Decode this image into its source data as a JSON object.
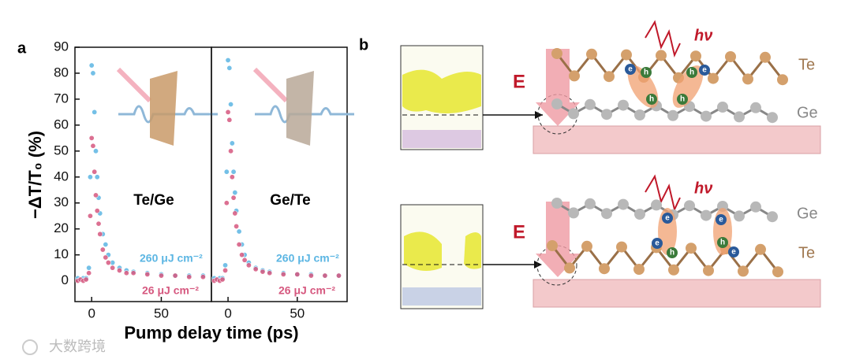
{
  "chart_data": [
    {
      "type": "scatter",
      "panel_label": "a",
      "title": "Te/Ge",
      "ylabel": "−ΔT/T₀ (%)",
      "xlabel": "Pump delay time (ps)",
      "x": [
        -10,
        -8,
        -6,
        -4,
        -2,
        -1,
        0,
        1,
        2,
        3,
        4,
        5,
        6,
        8,
        10,
        12,
        15,
        20,
        25,
        30,
        40,
        50,
        60,
        70,
        80
      ],
      "series": [
        {
          "name": "260 μJ cm⁻²",
          "color": "#5cb6e3",
          "values": [
            1,
            0.5,
            1,
            1,
            5,
            40,
            83,
            80,
            65,
            50,
            40,
            32,
            26,
            18,
            14,
            10,
            7,
            5,
            4,
            3.5,
            3,
            2.5,
            2,
            2,
            2
          ]
        },
        {
          "name": "26 μJ cm⁻²",
          "color": "#d6587f",
          "values": [
            0,
            0.5,
            0,
            0.5,
            3,
            25,
            55,
            52,
            42,
            33,
            27,
            22,
            18,
            12,
            9,
            7,
            5,
            4,
            3,
            3,
            2.5,
            2,
            2,
            1.5,
            1.5
          ]
        }
      ],
      "xlim": [
        -12,
        86
      ],
      "ylim": [
        -8,
        90
      ],
      "xticks": [
        0,
        50
      ],
      "yticks": [
        0,
        10,
        20,
        30,
        40,
        50,
        60,
        70,
        80,
        90
      ]
    },
    {
      "type": "scatter",
      "title": "Ge/Te",
      "x": [
        -10,
        -8,
        -6,
        -4,
        -2,
        -1,
        0,
        1,
        2,
        3,
        4,
        5,
        6,
        8,
        10,
        12,
        15,
        20,
        25,
        30,
        40,
        50,
        60,
        70,
        80
      ],
      "series": [
        {
          "name": "260 μJ cm⁻²",
          "color": "#5cb6e3",
          "values": [
            1,
            0.5,
            1,
            1,
            6,
            42,
            85,
            82,
            68,
            53,
            42,
            34,
            27,
            19,
            14,
            10,
            7,
            5,
            4,
            3.5,
            3,
            2.5,
            2.5,
            2,
            2
          ]
        },
        {
          "name": "26 μJ cm⁻²",
          "color": "#d6587f",
          "values": [
            0,
            0.5,
            0,
            0.5,
            4,
            30,
            65,
            62,
            50,
            40,
            32,
            26,
            21,
            14,
            10,
            8,
            6,
            4.5,
            3.5,
            3,
            2.5,
            2.5,
            2,
            2,
            2
          ]
        }
      ],
      "xlim": [
        -12,
        86
      ],
      "ylim": [
        -8,
        90
      ],
      "xticks": [
        0,
        50
      ]
    }
  ],
  "diagram": {
    "panel_label": "b",
    "top": {
      "photon": "hν",
      "upper_layer": "Te",
      "lower_layer": "Ge",
      "field": "E"
    },
    "bottom": {
      "photon": "hν",
      "upper_layer": "Ge",
      "lower_layer": "Te",
      "field": "E"
    },
    "electron": "e",
    "hole": "h"
  },
  "watermark": "大数跨境"
}
